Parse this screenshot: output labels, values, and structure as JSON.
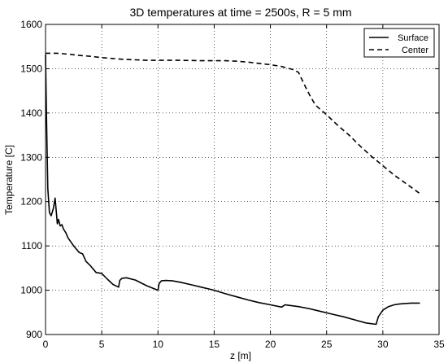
{
  "chart_data": {
    "type": "line",
    "title": "3D temperatures at time = 2500s, R = 5 mm",
    "xlabel": "z [m]",
    "ylabel": "Temperature [C]",
    "xlim": [
      0,
      35
    ],
    "ylim": [
      900,
      1600
    ],
    "xticks": [
      0,
      5,
      10,
      15,
      20,
      25,
      30,
      35
    ],
    "yticks": [
      900,
      1000,
      1100,
      1200,
      1300,
      1400,
      1500,
      1600
    ],
    "grid": true,
    "legend_position": "top-right",
    "series": [
      {
        "name": "Surface",
        "style": "solid",
        "color": "#000000",
        "x": [
          0,
          0.08,
          0.2,
          0.35,
          0.5,
          0.7,
          0.85,
          0.95,
          1.05,
          1.15,
          1.3,
          1.45,
          1.6,
          1.8,
          2.0,
          2.5,
          3.0,
          3.3,
          3.6,
          4.0,
          4.5,
          5.0,
          5.5,
          6.0,
          6.5,
          6.6,
          6.8,
          7.2,
          8.0,
          9.0,
          10.0,
          10.1,
          10.3,
          10.7,
          11.3,
          12.0,
          13.0,
          14.0,
          15.0,
          16.0,
          17.0,
          18.0,
          19.0,
          20.0,
          21.0,
          21.3,
          21.6,
          22.5,
          23.5,
          24.5,
          25.5,
          26.5,
          27.5,
          28.5,
          29.4,
          29.6,
          30.0,
          30.5,
          31.0,
          31.5,
          32.0,
          32.5,
          33.3
        ],
        "y": [
          1532,
          1400,
          1230,
          1175,
          1168,
          1185,
          1208,
          1180,
          1150,
          1160,
          1145,
          1148,
          1138,
          1130,
          1118,
          1100,
          1085,
          1082,
          1065,
          1055,
          1040,
          1038,
          1025,
          1013,
          1007,
          1022,
          1027,
          1028,
          1023,
          1010,
          1000,
          1015,
          1021,
          1022,
          1021,
          1018,
          1012,
          1006,
          1000,
          992,
          985,
          978,
          972,
          967,
          962,
          967,
          966,
          963,
          958,
          952,
          946,
          940,
          933,
          926,
          923,
          940,
          955,
          963,
          967,
          969,
          970,
          971,
          971
        ]
      },
      {
        "name": "Center",
        "style": "dashed",
        "color": "#000000",
        "x": [
          0,
          1,
          2,
          3,
          4,
          5,
          6,
          7,
          8,
          9,
          10,
          12,
          14,
          16,
          17,
          18,
          19,
          20,
          21,
          22,
          22.5,
          23,
          23.5,
          24,
          25,
          26,
          27,
          28,
          29,
          30,
          31,
          32,
          33.3
        ],
        "y": [
          1535,
          1535,
          1533,
          1530,
          1528,
          1525,
          1523,
          1521,
          1520,
          1519,
          1519,
          1519,
          1518,
          1518,
          1517,
          1515,
          1512,
          1509,
          1505,
          1498,
          1492,
          1465,
          1440,
          1418,
          1396,
          1372,
          1350,
          1325,
          1302,
          1281,
          1260,
          1242,
          1218
        ]
      }
    ]
  }
}
